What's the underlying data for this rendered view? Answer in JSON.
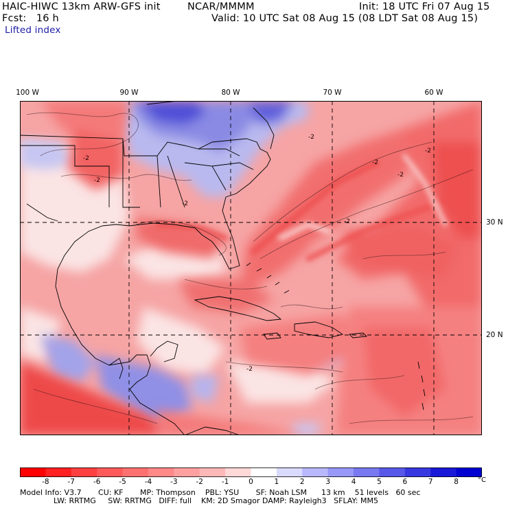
{
  "header": {
    "model": "HAIC-HIWC 13km ARW-GFS init",
    "org": "NCAR/MMMM",
    "init": "Init: 18 UTC Fri 07 Aug 15",
    "fcst": "Fcst:   16 h",
    "valid": "Valid: 10 UTC Sat 08 Aug 15 (08 LDT Sat 08 Aug 15)",
    "field": "Lifted index"
  },
  "map": {
    "lon_labels": [
      "100 W",
      "90 W",
      "80 W",
      "70 W",
      "60 W"
    ],
    "lat_labels": [
      "30 N",
      "20 N"
    ],
    "contour_label": "-2",
    "colors": {
      "neg_strong": "#f02020",
      "neg_mid": "#f46a6a",
      "neg_light": "#f9b3b3",
      "neutral": "#fbeaea",
      "pos_light": "#c8c8f4",
      "pos_mid": "#7a7ae8",
      "pos_strong": "#3535d8",
      "boundary": "#000000"
    }
  },
  "colorbar": {
    "labels": [
      "-8",
      "-7",
      "-6",
      "-5",
      "-4",
      "-3",
      "-2",
      "-1",
      "0",
      "1",
      "2",
      "3",
      "4",
      "5",
      "6",
      "7",
      "8"
    ],
    "unit": "°C",
    "colors": [
      "#ff0000",
      "#ff2020",
      "#ff4040",
      "#ff5a5a",
      "#ff7070",
      "#ff8888",
      "#ffa0a0",
      "#ffb8b8",
      "#ffd8d8",
      "#ffffff",
      "#dadaff",
      "#b8b8ff",
      "#9898f8",
      "#7878f0",
      "#5858e8",
      "#3838e0",
      "#1818d8",
      "#0000d0"
    ]
  },
  "model_info": {
    "line1": "Model Info: V3.7       CU: KF       MP: Thompson    PBL: YSU       SF: Noah LSM      13 km    51 levels   60 sec",
    "line2": "              LW: RRTMG     SW: RRTMG   DIFF: full    KM: 2D Smagor DAMP: Rayleigh3   SFLAY: MM5"
  }
}
